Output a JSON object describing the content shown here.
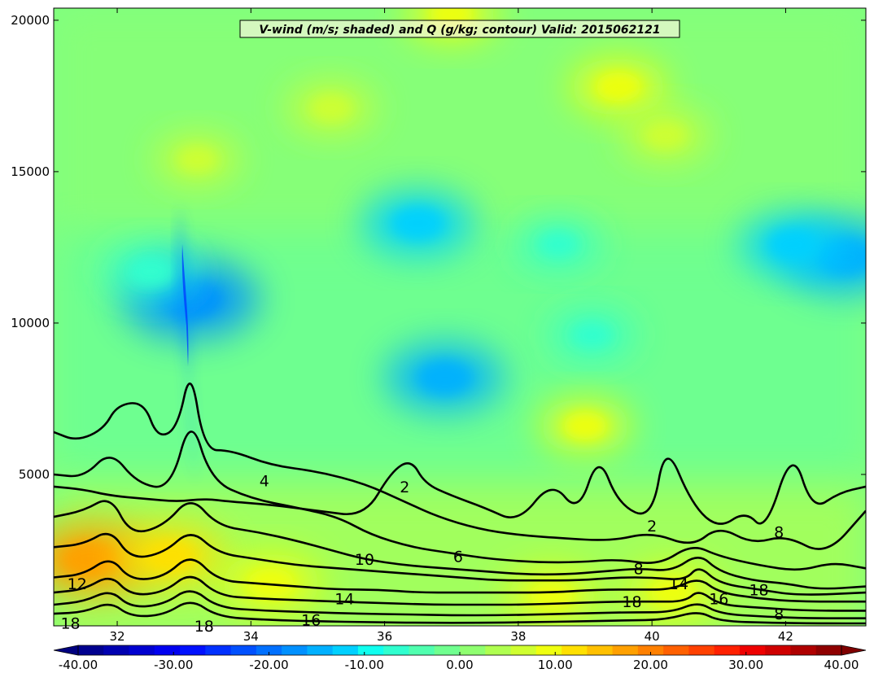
{
  "chart_data": {
    "type": "heatmap",
    "title": "V-wind (m/s; shaded) and Q (g/kg; contour) Valid: 2015062121",
    "xlabel": "",
    "ylabel": "",
    "xlim": [
      31.05,
      43.2
    ],
    "ylim": [
      0,
      20400
    ],
    "xticks": [
      "32",
      "34",
      "36",
      "38",
      "40",
      "42"
    ],
    "yticks": [
      "5000",
      "10000",
      "15000",
      "20000"
    ],
    "colorbar": {
      "orientation": "horizontal",
      "range": [
        -40,
        40
      ],
      "ticks": [
        "-40.00",
        "-30.00",
        "-20.00",
        "-10.00",
        "0.00",
        "10.00",
        "20.00",
        "30.00",
        "40.00"
      ],
      "colors": [
        "#00008f",
        "#0000b0",
        "#0000d0",
        "#0000f0",
        "#0010ff",
        "#0030ff",
        "#0050ff",
        "#0070ff",
        "#0090ff",
        "#00b0ff",
        "#00d0ff",
        "#10ffef",
        "#30ffcf",
        "#50ffaf",
        "#70ff8f",
        "#8fff70",
        "#afff50",
        "#cfff30",
        "#efff10",
        "#ffe000",
        "#ffc000",
        "#ffa000",
        "#ff8000",
        "#ff6000",
        "#ff4000",
        "#ff2000",
        "#ef0000",
        "#cf0000",
        "#af0000",
        "#8f0000"
      ]
    },
    "shading_features": [
      {
        "x": 36.5,
        "y": 13300,
        "value": -13
      },
      {
        "x": 36.9,
        "y": 8200,
        "value": -14
      },
      {
        "x": 42.9,
        "y": 12200,
        "value": -16
      },
      {
        "x": 42.1,
        "y": 12600,
        "value": -11
      },
      {
        "x": 33.1,
        "y": 10800,
        "value": -18
      },
      {
        "x": 32.5,
        "y": 11700,
        "value": -8
      },
      {
        "x": 39.1,
        "y": 9600,
        "value": -6
      },
      {
        "x": 38.6,
        "y": 12600,
        "value": -6
      },
      {
        "x": 31.6,
        "y": 2200,
        "value": 16
      },
      {
        "x": 32.8,
        "y": 2300,
        "value": 12
      },
      {
        "x": 34.3,
        "y": 1400,
        "value": 10
      },
      {
        "x": 38.5,
        "y": 1000,
        "value": 8
      },
      {
        "x": 40.3,
        "y": 1100,
        "value": 8
      },
      {
        "x": 39.0,
        "y": 6600,
        "value": 8
      },
      {
        "x": 39.5,
        "y": 17800,
        "value": 9
      },
      {
        "x": 40.2,
        "y": 16200,
        "value": 7
      },
      {
        "x": 35.2,
        "y": 17100,
        "value": 7
      },
      {
        "x": 37.0,
        "y": 20200,
        "value": 8
      },
      {
        "x": 33.2,
        "y": 15400,
        "value": 6
      }
    ],
    "contours": [
      {
        "level": "2",
        "points": [
          [
            31.05,
            4600
          ],
          [
            31.5,
            4500
          ],
          [
            31.9,
            4300
          ],
          [
            32.4,
            4200
          ],
          [
            32.9,
            4100
          ],
          [
            33.3,
            4200
          ],
          [
            33.7,
            4100
          ],
          [
            34.3,
            4000
          ],
          [
            35.0,
            3800
          ],
          [
            35.7,
            3600
          ],
          [
            36.1,
            5100
          ],
          [
            36.4,
            5500
          ],
          [
            36.6,
            4700
          ],
          [
            37.0,
            4300
          ],
          [
            37.5,
            3900
          ],
          [
            38.0,
            3400
          ],
          [
            38.5,
            4800
          ],
          [
            38.9,
            3700
          ],
          [
            39.2,
            5700
          ],
          [
            39.5,
            4000
          ],
          [
            40.0,
            3500
          ],
          [
            40.2,
            6100
          ],
          [
            40.6,
            4000
          ],
          [
            41.0,
            3200
          ],
          [
            41.4,
            3800
          ],
          [
            41.7,
            3100
          ],
          [
            42.1,
            5900
          ],
          [
            42.4,
            3800
          ],
          [
            42.8,
            4400
          ],
          [
            43.2,
            4600
          ]
        ]
      },
      {
        "level": "4",
        "points": [
          [
            31.05,
            6400
          ],
          [
            31.4,
            6100
          ],
          [
            31.8,
            6500
          ],
          [
            32.0,
            7300
          ],
          [
            32.4,
            7400
          ],
          [
            32.6,
            6200
          ],
          [
            32.9,
            6500
          ],
          [
            33.1,
            8600
          ],
          [
            33.3,
            5800
          ],
          [
            33.7,
            5800
          ],
          [
            34.3,
            5300
          ],
          [
            35.0,
            5100
          ],
          [
            35.7,
            4700
          ],
          [
            36.3,
            4100
          ],
          [
            36.8,
            3600
          ],
          [
            37.4,
            3200
          ],
          [
            38.0,
            3000
          ],
          [
            38.6,
            2900
          ],
          [
            39.4,
            2800
          ],
          [
            40.0,
            3100
          ],
          [
            40.6,
            2600
          ],
          [
            41.0,
            3300
          ],
          [
            41.5,
            2700
          ],
          [
            42.0,
            3000
          ],
          [
            42.6,
            2300
          ],
          [
            43.2,
            3800
          ]
        ]
      },
      {
        "level": "6",
        "points": [
          [
            31.05,
            5000
          ],
          [
            31.5,
            4900
          ],
          [
            31.9,
            5800
          ],
          [
            32.3,
            4700
          ],
          [
            32.8,
            4500
          ],
          [
            33.1,
            7000
          ],
          [
            33.4,
            4800
          ],
          [
            34.0,
            4200
          ],
          [
            34.7,
            3900
          ],
          [
            35.3,
            3600
          ],
          [
            35.8,
            3000
          ],
          [
            36.4,
            2600
          ],
          [
            37.0,
            2400
          ],
          [
            37.6,
            2200
          ],
          [
            38.3,
            2100
          ],
          [
            38.9,
            2100
          ],
          [
            39.5,
            2200
          ],
          [
            40.1,
            2000
          ],
          [
            40.6,
            2700
          ],
          [
            41.0,
            2300
          ],
          [
            41.6,
            2000
          ],
          [
            42.2,
            1800
          ],
          [
            42.7,
            2100
          ],
          [
            43.2,
            1900
          ]
        ]
      },
      {
        "level": "8",
        "points": [
          [
            31.05,
            3600
          ],
          [
            31.5,
            3800
          ],
          [
            31.9,
            4300
          ],
          [
            32.2,
            3000
          ],
          [
            32.7,
            3300
          ],
          [
            33.1,
            4300
          ],
          [
            33.5,
            3300
          ],
          [
            34.1,
            3100
          ],
          [
            34.7,
            2800
          ],
          [
            35.2,
            2500
          ],
          [
            35.7,
            2200
          ],
          [
            36.3,
            2000
          ],
          [
            36.9,
            1900
          ],
          [
            37.5,
            1800
          ],
          [
            38.1,
            1700
          ],
          [
            38.7,
            1700
          ],
          [
            39.3,
            1800
          ],
          [
            39.8,
            1900
          ],
          [
            40.3,
            1800
          ],
          [
            40.7,
            2400
          ],
          [
            41.0,
            1800
          ],
          [
            41.5,
            1500
          ],
          [
            42.0,
            1400
          ],
          [
            42.5,
            1200
          ],
          [
            43.2,
            1300
          ]
        ]
      },
      {
        "level": "10",
        "points": [
          [
            31.05,
            2600
          ],
          [
            31.5,
            2700
          ],
          [
            31.9,
            3200
          ],
          [
            32.2,
            2200
          ],
          [
            32.7,
            2400
          ],
          [
            33.1,
            3200
          ],
          [
            33.5,
            2400
          ],
          [
            34.1,
            2200
          ],
          [
            34.7,
            2000
          ],
          [
            35.3,
            1900
          ],
          [
            35.9,
            1800
          ],
          [
            36.5,
            1700
          ],
          [
            37.1,
            1600
          ],
          [
            37.7,
            1500
          ],
          [
            38.3,
            1500
          ],
          [
            38.9,
            1500
          ],
          [
            39.5,
            1600
          ],
          [
            40.0,
            1600
          ],
          [
            40.5,
            1500
          ],
          [
            40.7,
            2000
          ],
          [
            41.0,
            1400
          ],
          [
            41.6,
            1200
          ],
          [
            42.2,
            1000
          ],
          [
            43.2,
            1100
          ]
        ]
      },
      {
        "level": "12",
        "points": [
          [
            31.05,
            1600
          ],
          [
            31.5,
            1700
          ],
          [
            31.9,
            2300
          ],
          [
            32.2,
            1500
          ],
          [
            32.7,
            1600
          ],
          [
            33.1,
            2400
          ],
          [
            33.5,
            1500
          ],
          [
            34.1,
            1400
          ],
          [
            34.7,
            1300
          ],
          [
            35.3,
            1200
          ],
          [
            35.9,
            1200
          ],
          [
            36.5,
            1100
          ],
          [
            37.1,
            1100
          ],
          [
            37.8,
            1100
          ],
          [
            38.5,
            1100
          ],
          [
            39.2,
            1200
          ],
          [
            39.8,
            1200
          ],
          [
            40.3,
            1200
          ],
          [
            40.7,
            1600
          ],
          [
            41.0,
            1100
          ],
          [
            41.6,
            900
          ],
          [
            42.2,
            800
          ],
          [
            43.2,
            800
          ]
        ]
      },
      {
        "level": "14",
        "points": [
          [
            31.05,
            1100
          ],
          [
            31.5,
            1200
          ],
          [
            31.9,
            1700
          ],
          [
            32.2,
            1000
          ],
          [
            32.7,
            1100
          ],
          [
            33.1,
            1800
          ],
          [
            33.5,
            1000
          ],
          [
            34.1,
            900
          ],
          [
            34.7,
            850
          ],
          [
            35.3,
            800
          ],
          [
            36.0,
            750
          ],
          [
            36.7,
            700
          ],
          [
            37.4,
            700
          ],
          [
            38.1,
            700
          ],
          [
            38.8,
            750
          ],
          [
            39.4,
            800
          ],
          [
            40.0,
            800
          ],
          [
            40.5,
            800
          ],
          [
            40.7,
            1200
          ],
          [
            41.0,
            700
          ],
          [
            41.6,
            600
          ],
          [
            42.3,
            500
          ],
          [
            43.2,
            500
          ]
        ]
      },
      {
        "level": "16",
        "points": [
          [
            31.05,
            700
          ],
          [
            31.5,
            800
          ],
          [
            31.9,
            1200
          ],
          [
            32.2,
            600
          ],
          [
            32.7,
            700
          ],
          [
            33.1,
            1300
          ],
          [
            33.5,
            600
          ],
          [
            34.2,
            500
          ],
          [
            34.9,
            450
          ],
          [
            35.6,
            400
          ],
          [
            36.3,
            380
          ],
          [
            37.0,
            350
          ],
          [
            37.7,
            350
          ],
          [
            38.4,
            380
          ],
          [
            39.1,
            420
          ],
          [
            39.7,
            450
          ],
          [
            40.3,
            450
          ],
          [
            40.7,
            800
          ],
          [
            41.0,
            400
          ],
          [
            41.7,
            300
          ],
          [
            42.4,
            250
          ],
          [
            43.2,
            250
          ]
        ]
      },
      {
        "level": "18",
        "points": [
          [
            31.05,
            400
          ],
          [
            31.5,
            450
          ],
          [
            31.9,
            800
          ],
          [
            32.2,
            300
          ],
          [
            32.7,
            350
          ],
          [
            33.1,
            900
          ],
          [
            33.5,
            300
          ],
          [
            34.2,
            200
          ],
          [
            35.0,
            150
          ],
          [
            35.8,
            120
          ],
          [
            36.6,
            100
          ],
          [
            37.4,
            100
          ],
          [
            38.2,
            120
          ],
          [
            38.9,
            150
          ],
          [
            39.6,
            180
          ],
          [
            40.2,
            200
          ],
          [
            40.7,
            500
          ],
          [
            41.0,
            150
          ],
          [
            41.8,
            100
          ],
          [
            42.6,
            80
          ],
          [
            43.2,
            80
          ]
        ]
      }
    ],
    "contour_labels": [
      {
        "text": "2",
        "x": 36.3,
        "y": 4600
      },
      {
        "text": "2",
        "x": 40.0,
        "y": 3300
      },
      {
        "text": "4",
        "x": 34.2,
        "y": 4800
      },
      {
        "text": "6",
        "x": 37.1,
        "y": 2300
      },
      {
        "text": "8",
        "x": 39.8,
        "y": 1900
      },
      {
        "text": "8",
        "x": 41.9,
        "y": 400
      },
      {
        "text": "8",
        "x": 41.9,
        "y": 3100
      },
      {
        "text": "10",
        "x": 35.7,
        "y": 2200
      },
      {
        "text": "12",
        "x": 31.4,
        "y": 1400
      },
      {
        "text": "14",
        "x": 35.4,
        "y": 900
      },
      {
        "text": "14",
        "x": 40.4,
        "y": 1400
      },
      {
        "text": "16",
        "x": 34.9,
        "y": 200
      },
      {
        "text": "16",
        "x": 41.0,
        "y": 900
      },
      {
        "text": "18",
        "x": 31.3,
        "y": 100
      },
      {
        "text": "18",
        "x": 39.7,
        "y": 800
      },
      {
        "text": "18",
        "x": 41.6,
        "y": 1200
      },
      {
        "text": "18",
        "x": 33.3,
        "y": 0
      }
    ]
  }
}
